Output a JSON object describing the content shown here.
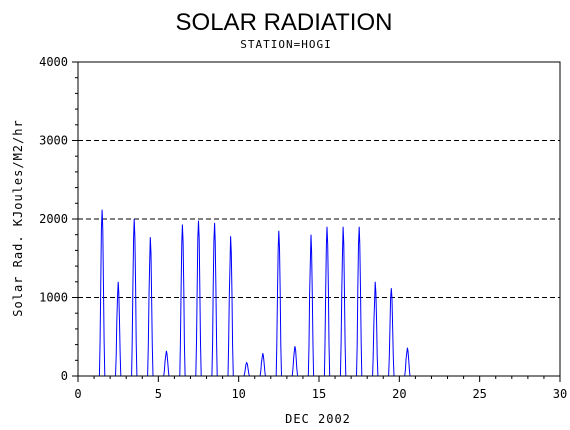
{
  "chart_data": {
    "type": "line",
    "title": "SOLAR RADIATION",
    "subtitle": "STATION=HOGI",
    "xlabel": "DEC 2002",
    "ylabel": "Solar Rad. KJoules/M2/hr",
    "xlim": [
      0,
      30
    ],
    "ylim": [
      0,
      4000
    ],
    "x_ticks": [
      0,
      5,
      10,
      15,
      20,
      25,
      30
    ],
    "y_ticks": [
      0,
      1000,
      2000,
      3000,
      4000
    ],
    "grid": "horizontal-dashed",
    "line_color": "#0000ff",
    "daily_peaks": [
      {
        "day": 1,
        "peak": 2120,
        "shoulder": 0
      },
      {
        "day": 2,
        "peak": 1200,
        "shoulder": 1000
      },
      {
        "day": 3,
        "peak": 2000,
        "shoulder": 0
      },
      {
        "day": 4,
        "peak": 1770,
        "shoulder": 1300
      },
      {
        "day": 5,
        "peak": 320,
        "shoulder": 250
      },
      {
        "day": 6,
        "peak": 1930,
        "shoulder": 0
      },
      {
        "day": 7,
        "peak": 1980,
        "shoulder": 0
      },
      {
        "day": 8,
        "peak": 1950,
        "shoulder": 0
      },
      {
        "day": 9,
        "peak": 1780,
        "shoulder": 1300
      },
      {
        "day": 10,
        "peak": 170,
        "shoulder": 0
      },
      {
        "day": 11,
        "peak": 290,
        "shoulder": 220
      },
      {
        "day": 12,
        "peak": 1850,
        "shoulder": 0
      },
      {
        "day": 13,
        "peak": 380,
        "shoulder": 200
      },
      {
        "day": 14,
        "peak": 1800,
        "shoulder": 1200
      },
      {
        "day": 15,
        "peak": 1900,
        "shoulder": 0
      },
      {
        "day": 16,
        "peak": 1900,
        "shoulder": 1500
      },
      {
        "day": 17,
        "peak": 1900,
        "shoulder": 0
      },
      {
        "day": 18,
        "peak": 1200,
        "shoulder": 400
      },
      {
        "day": 19,
        "peak": 1120,
        "shoulder": 0
      },
      {
        "day": 20,
        "peak": 360,
        "shoulder": 200
      }
    ]
  }
}
